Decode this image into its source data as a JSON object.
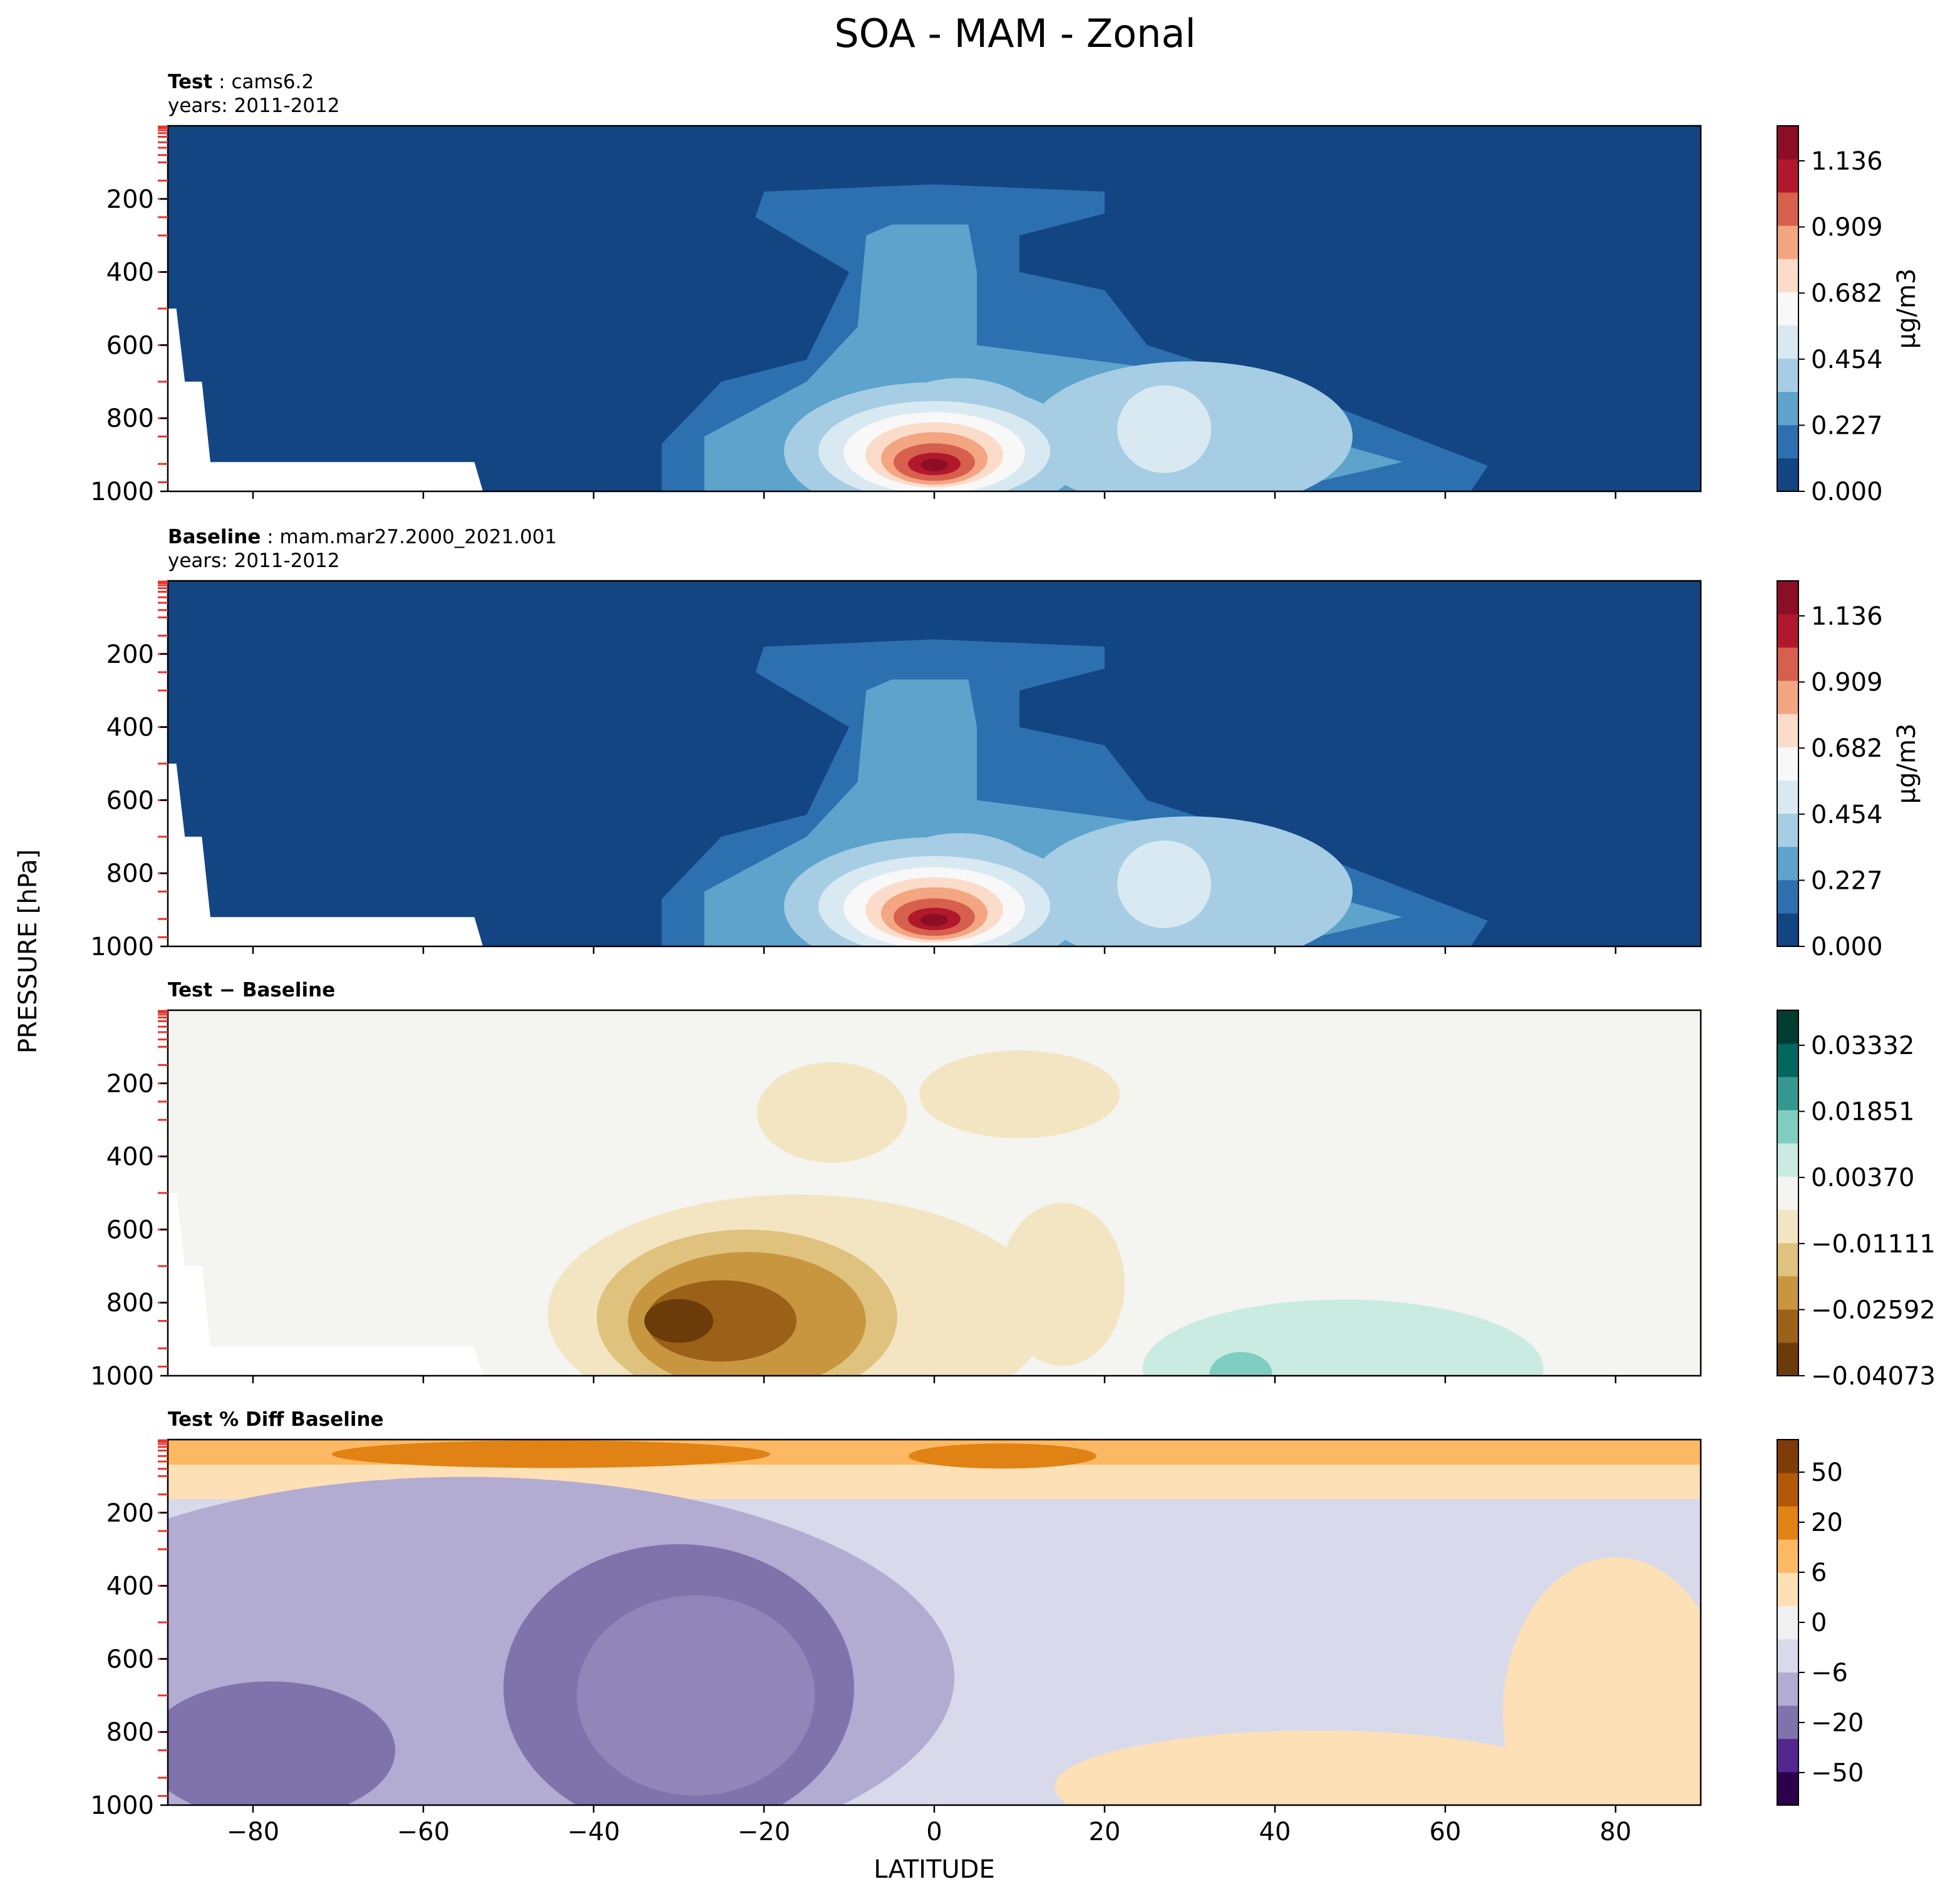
{
  "chart_data": {
    "suptitle": "SOA - MAM - Zonal",
    "shared_ylabel": "PRESSURE [hPa]",
    "shared_xlabel": "LATITUDE",
    "x_ticks": [
      "−80",
      "−60",
      "−40",
      "−20",
      "0",
      "20",
      "40",
      "60",
      "80"
    ],
    "y_ticks": [
      "200",
      "400",
      "600",
      "800",
      "1000"
    ],
    "panels": [
      {
        "type": "heatmap",
        "title_bold": "Test",
        "title_rest": ": cams6.2",
        "subtitle": "years: 2011-2012",
        "xlim": [
          -90,
          90
        ],
        "ylim": [
          1000,
          0
        ],
        "colorbar": {
          "label": "μg/m3",
          "ticks": [
            "1.136",
            "0.909",
            "0.682",
            "0.454",
            "0.227",
            "0.000"
          ],
          "colors": [
            "#134582",
            "#2c70b0",
            "#5da3cc",
            "#a6cde3",
            "#d9e9f2",
            "#f8f8f8",
            "#fbdcca",
            "#f4a582",
            "#d6604d",
            "#b2182b",
            "#8b0e25"
          ]
        },
        "max_value_region": {
          "lat": 0,
          "pressure": 925,
          "value": 1.2
        }
      },
      {
        "type": "heatmap",
        "title_bold": "Baseline",
        "title_rest": ": mam.mar27.2000_2021.001",
        "subtitle": "years: 2011-2012",
        "xlim": [
          -90,
          90
        ],
        "ylim": [
          1000,
          0
        ],
        "colorbar": {
          "label": "μg/m3",
          "ticks": [
            "1.136",
            "0.909",
            "0.682",
            "0.454",
            "0.227",
            "0.000"
          ],
          "colors": [
            "#134582",
            "#2c70b0",
            "#5da3cc",
            "#a6cde3",
            "#d9e9f2",
            "#f8f8f8",
            "#fbdcca",
            "#f4a582",
            "#d6604d",
            "#b2182b",
            "#8b0e25"
          ]
        }
      },
      {
        "type": "heatmap",
        "title_bold": "Test − Baseline",
        "title_rest": "",
        "subtitle": "",
        "xlim": [
          -90,
          90
        ],
        "ylim": [
          1000,
          0
        ],
        "colorbar": {
          "label": "",
          "ticks": [
            "0.03332",
            "0.01851",
            "0.00370",
            "−0.01111",
            "−0.02592",
            "−0.04073"
          ],
          "colors": [
            "#6b3b0a",
            "#9b6119",
            "#c8963e",
            "#dfc27d",
            "#f4e5c2",
            "#f4f4f1",
            "#c9ebe2",
            "#80cdc1",
            "#35978f",
            "#01665e",
            "#003c30"
          ]
        }
      },
      {
        "type": "heatmap",
        "title_bold": "Test % Diff Baseline",
        "title_rest": "",
        "subtitle": "",
        "xlim": [
          -90,
          90
        ],
        "ylim": [
          1000,
          0
        ],
        "colorbar": {
          "label": "",
          "ticks": [
            "50",
            "20",
            "6",
            "0",
            "−6",
            "−20",
            "−50"
          ],
          "colors": [
            "#2d004b",
            "#54278f",
            "#8073ac",
            "#b2abd2",
            "#d8daeb",
            "#f0f0f0",
            "#fee0b6",
            "#fdb863",
            "#e08214",
            "#b35806",
            "#7f3b08"
          ]
        }
      }
    ]
  }
}
